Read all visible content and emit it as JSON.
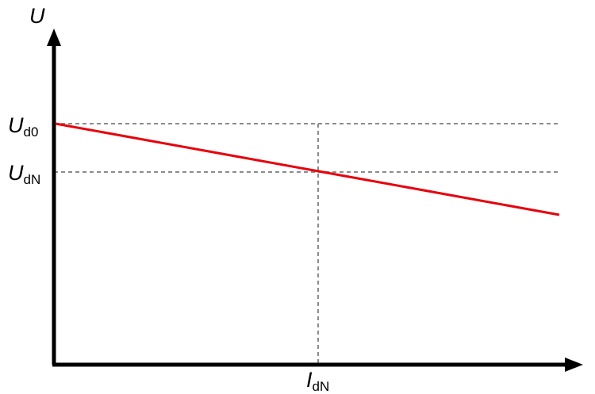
{
  "axes": {
    "y_label": "U",
    "x_label_main": "I",
    "x_label_sub": "dN"
  },
  "markers": {
    "ud0_main": "U",
    "ud0_sub": "d0",
    "udn_main": "U",
    "udn_sub": "dN"
  },
  "colors": {
    "axis": "#000000",
    "guide": "#8c8c8c",
    "line": "#e8000b"
  }
}
